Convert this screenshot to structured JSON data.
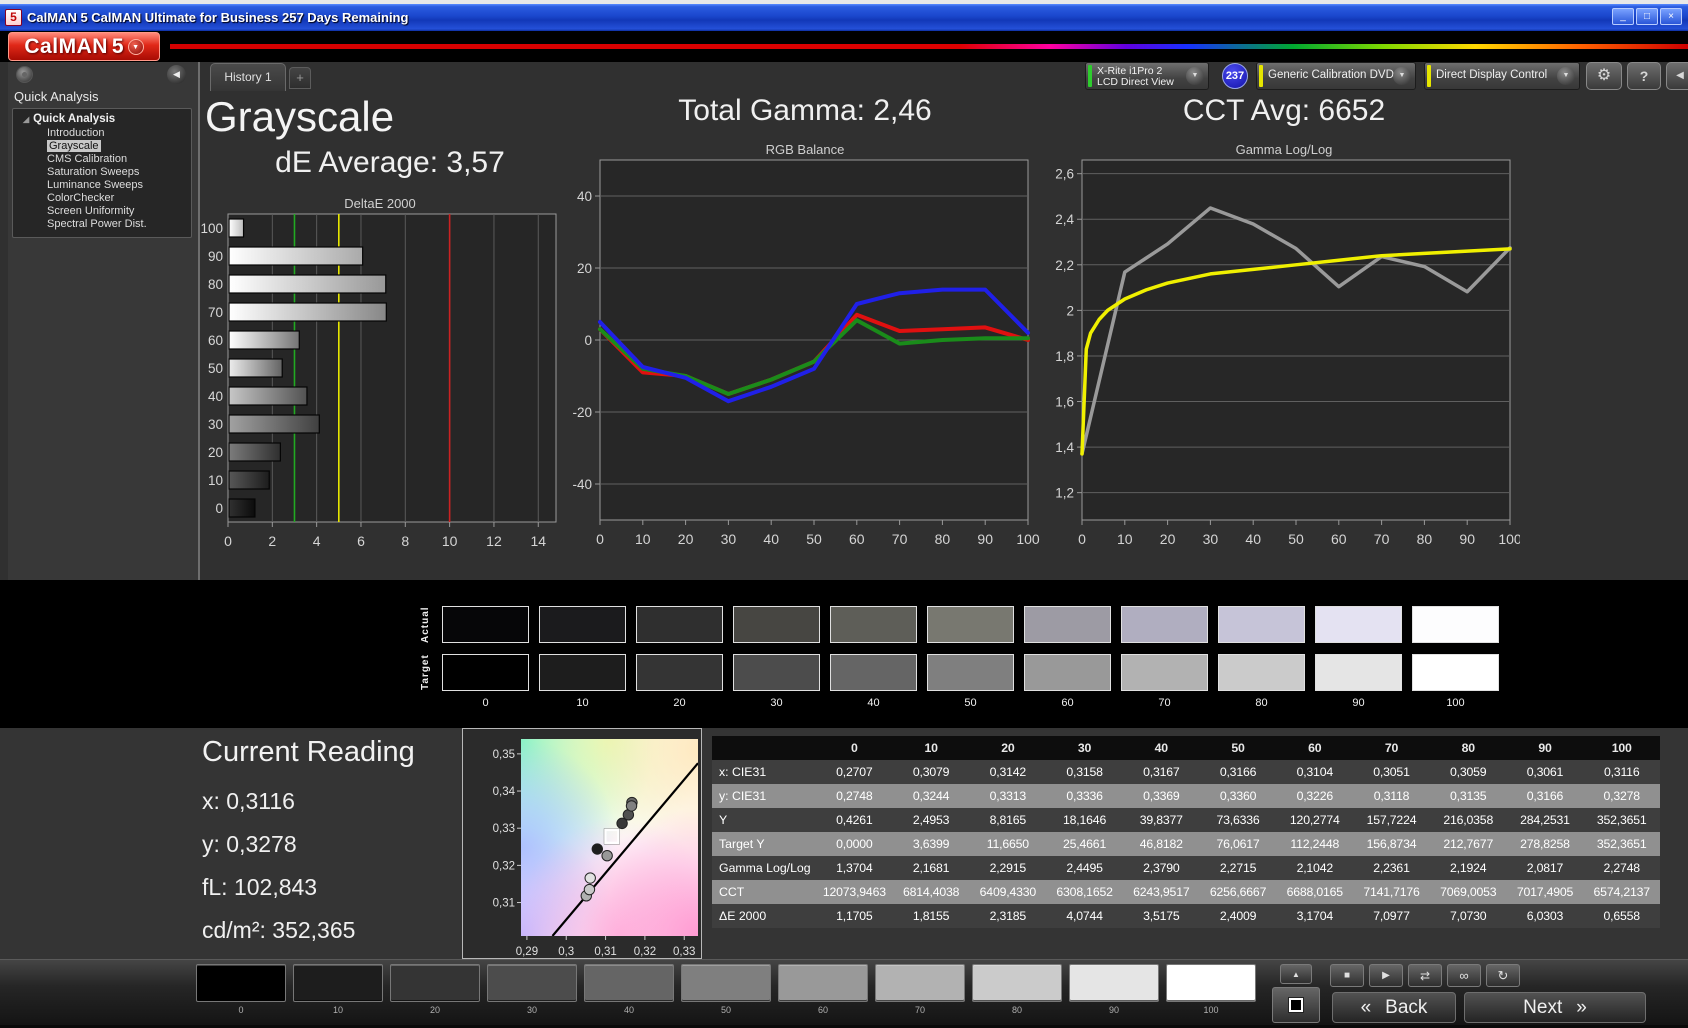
{
  "window": {
    "title": "CalMAN 5 CalMAN Ultimate for Business 257 Days Remaining",
    "icon": "5",
    "minimize": "_",
    "maximize": "□",
    "close": "×"
  },
  "logo": {
    "name": "CalMAN",
    "version": "5",
    "dropdown": "▼"
  },
  "tabbar": {
    "history_tab": "History 1",
    "add_tab": "+"
  },
  "toolbar": {
    "meter_line1": "X-Rite i1Pro 2",
    "meter_line2": "LCD Direct View",
    "meter_accent": "#2ecc2e",
    "badge": "237",
    "badge_color": "#1a1acc",
    "source_label": "Generic Calibration DVD",
    "source_accent": "#e6e600",
    "display_label": "Direct Display Control",
    "display_accent": "#e6e600",
    "gear": "⚙",
    "help": "?",
    "collapse": "◀",
    "dropdown_arrow": "▼"
  },
  "sidebar": {
    "panel_title": "Quick Analysis",
    "root": "Quick Analysis",
    "expander": "◢",
    "items": [
      "Introduction",
      "Grayscale",
      "CMS Calibration",
      "Saturation Sweeps",
      "Luminance Sweeps",
      "ColorChecker",
      "Screen Uniformity",
      "Spectral Power Dist."
    ],
    "selected_index": 1,
    "collapse_arrow": "◀"
  },
  "headers": {
    "page_title": "Grayscale",
    "de_average": "dE Average: 3,57",
    "total_gamma": "Total Gamma: 2,46",
    "cct_avg": "CCT Avg: 6652"
  },
  "chart_data": [
    {
      "id": "deltae",
      "type": "bar",
      "orientation": "horizontal",
      "title": "DeltaE 2000",
      "categories": [
        "100",
        "90",
        "80",
        "70",
        "60",
        "50",
        "40",
        "30",
        "20",
        "10",
        "0"
      ],
      "values": [
        0.6558,
        6.0303,
        7.073,
        7.0977,
        3.1704,
        2.4009,
        3.5175,
        4.0744,
        2.3185,
        1.8155,
        1.1705
      ],
      "xlim": [
        0,
        14.8
      ],
      "x_ticks": [
        0,
        2,
        4,
        6,
        8,
        10,
        12,
        14
      ],
      "reference_lines": [
        {
          "value": 3,
          "color": "#22aa22"
        },
        {
          "value": 5,
          "color": "#e8e800"
        },
        {
          "value": 10,
          "color": "#cc2222"
        }
      ],
      "grid": true
    },
    {
      "id": "rgb_balance",
      "type": "line",
      "title": "RGB Balance",
      "x": [
        0,
        10,
        20,
        30,
        40,
        50,
        60,
        70,
        80,
        90,
        100
      ],
      "ylim": [
        -50,
        50
      ],
      "y_ticks": [
        40,
        20,
        0,
        -20,
        -40
      ],
      "x_ticks": [
        0,
        10,
        20,
        30,
        40,
        50,
        60,
        70,
        80,
        90,
        100
      ],
      "grid": true,
      "series": [
        {
          "name": "red-balance",
          "color": "#e01010",
          "values": [
            3,
            -9,
            -10,
            -15,
            -11,
            -6,
            7,
            2.5,
            3,
            3.5,
            0
          ]
        },
        {
          "name": "green-balance",
          "color": "#1a8c1a",
          "values": [
            3,
            -8,
            -10,
            -15,
            -11,
            -6,
            5.5,
            -1,
            0,
            0.5,
            0.5
          ]
        },
        {
          "name": "blue-balance",
          "color": "#2020e8",
          "values": [
            5,
            -7.5,
            -10.5,
            -17,
            -13,
            -8,
            10,
            13,
            14,
            14,
            2
          ]
        }
      ]
    },
    {
      "id": "gamma",
      "type": "line",
      "title": "Gamma Log/Log",
      "ylim": [
        1.08,
        2.66
      ],
      "y_ticks": [
        1.2,
        1.4,
        1.6,
        1.8,
        2,
        2.2,
        2.4,
        2.6
      ],
      "y_tick_labels": [
        "1,2",
        "1,4",
        "1,6",
        "1,8",
        "2",
        "2,2",
        "2,4",
        "2,6"
      ],
      "x_ticks": [
        0,
        10,
        20,
        30,
        40,
        50,
        60,
        70,
        80,
        90,
        100
      ],
      "grid": true,
      "series": [
        {
          "name": "measured-gamma",
          "color": "#9a9a9a",
          "x": [
            0,
            10,
            20,
            30,
            40,
            50,
            60,
            70,
            80,
            90,
            100
          ],
          "values": [
            1.3704,
            2.1681,
            2.2915,
            2.4495,
            2.379,
            2.2715,
            2.1042,
            2.2361,
            2.1924,
            2.0817,
            2.2748
          ]
        },
        {
          "name": "target-gamma",
          "color": "#f0f000",
          "x": [
            0,
            1,
            2,
            4,
            6,
            10,
            15,
            20,
            30,
            40,
            50,
            60,
            70,
            80,
            90,
            100
          ],
          "values": [
            1.37,
            1.83,
            1.9,
            1.96,
            2.0,
            2.05,
            2.09,
            2.12,
            2.16,
            2.18,
            2.2,
            2.22,
            2.24,
            2.25,
            2.26,
            2.27
          ]
        }
      ]
    },
    {
      "id": "cie",
      "type": "scatter",
      "title": "CIE xy chromaticity",
      "xlim": [
        0.2885,
        0.3335
      ],
      "ylim": [
        0.301,
        0.354
      ],
      "x_ticks": [
        0.29,
        0.3,
        0.31,
        0.32,
        0.33
      ],
      "x_tick_labels": [
        "0,29",
        "0,3",
        "0,31",
        "0,32",
        "0,33"
      ],
      "y_ticks": [
        0.35,
        0.34,
        0.33,
        0.32,
        0.31
      ],
      "y_tick_labels": [
        "0,35",
        "0,34",
        "0,33",
        "0,32",
        "0,31"
      ],
      "locus_line": [
        [
          0.2965,
          0.301
        ],
        [
          0.3335,
          0.3475
        ]
      ],
      "points": [
        {
          "level": 10,
          "x": 0.3079,
          "y": 0.3244,
          "color": "#1e1e1e"
        },
        {
          "level": 20,
          "x": 0.3142,
          "y": 0.3313,
          "color": "#383838"
        },
        {
          "level": 30,
          "x": 0.3158,
          "y": 0.3336,
          "color": "#505050"
        },
        {
          "level": 40,
          "x": 0.3167,
          "y": 0.3369,
          "color": "#686868"
        },
        {
          "level": 50,
          "x": 0.3166,
          "y": 0.336,
          "color": "#808080"
        },
        {
          "level": 60,
          "x": 0.3104,
          "y": 0.3226,
          "color": "#989898"
        },
        {
          "level": 70,
          "x": 0.3051,
          "y": 0.3118,
          "color": "#b0b0b0"
        },
        {
          "level": 80,
          "x": 0.3059,
          "y": 0.3135,
          "color": "#c8c8c8"
        },
        {
          "level": 90,
          "x": 0.3061,
          "y": 0.3166,
          "color": "#e2e2e2"
        },
        {
          "level": 100,
          "x": 0.3116,
          "y": 0.3278,
          "color": "#ffffff",
          "marker": "square"
        }
      ]
    }
  ],
  "grayscale_band": {
    "actual_label": "Actual",
    "target_label": "Target",
    "levels": [
      "0",
      "10",
      "20",
      "30",
      "40",
      "50",
      "60",
      "70",
      "80",
      "90",
      "100"
    ],
    "actual_colors": [
      "#060608",
      "#1b1b1d",
      "#2f2f2f",
      "#474642",
      "#5e5e58",
      "#787870",
      "#9d9ba4",
      "#b0aec0",
      "#c6c4d8",
      "#e4e2f2",
      "#fdfdfe"
    ],
    "target_colors": [
      "#000000",
      "#1d1d1d",
      "#343434",
      "#4c4c4c",
      "#656565",
      "#7f7f7f",
      "#999999",
      "#b2b2b2",
      "#cbcbcb",
      "#e5e5e5",
      "#ffffff"
    ]
  },
  "current_reading": {
    "title": "Current Reading",
    "lines": [
      "x: 0,3116",
      "y: 0,3278",
      "fL: 102,843",
      "cd/m²: 352,365"
    ]
  },
  "table": {
    "columns": [
      "0",
      "10",
      "20",
      "30",
      "40",
      "50",
      "60",
      "70",
      "80",
      "90",
      "100"
    ],
    "rows": [
      {
        "label": "x: CIE31",
        "values": [
          "0,2707",
          "0,3079",
          "0,3142",
          "0,3158",
          "0,3167",
          "0,3166",
          "0,3104",
          "0,3051",
          "0,3059",
          "0,3061",
          "0,3116"
        ]
      },
      {
        "label": "y: CIE31",
        "values": [
          "0,2748",
          "0,3244",
          "0,3313",
          "0,3336",
          "0,3369",
          "0,3360",
          "0,3226",
          "0,3118",
          "0,3135",
          "0,3166",
          "0,3278"
        ]
      },
      {
        "label": "Y",
        "values": [
          "0,4261",
          "2,4953",
          "8,8165",
          "18,1646",
          "39,8377",
          "73,6336",
          "120,2774",
          "157,7224",
          "216,0358",
          "284,2531",
          "352,3651"
        ]
      },
      {
        "label": "Target Y",
        "values": [
          "0,0000",
          "3,6399",
          "11,6650",
          "25,4661",
          "46,8182",
          "76,0617",
          "112,2448",
          "156,8734",
          "212,7677",
          "278,8258",
          "352,3651"
        ]
      },
      {
        "label": "Gamma Log/Log",
        "values": [
          "1,3704",
          "2,1681",
          "2,2915",
          "2,4495",
          "2,3790",
          "2,2715",
          "2,1042",
          "2,2361",
          "2,1924",
          "2,0817",
          "2,2748"
        ]
      },
      {
        "label": "CCT",
        "values": [
          "12073,9463",
          "6814,4038",
          "6409,4330",
          "6308,1652",
          "6243,9517",
          "6256,6667",
          "6688,0165",
          "7141,7176",
          "7069,0053",
          "7017,4905",
          "6574,2137"
        ]
      },
      {
        "label": "ΔE 2000",
        "values": [
          "1,1705",
          "1,8155",
          "2,3185",
          "4,0744",
          "3,5175",
          "2,4009",
          "3,1704",
          "7,0977",
          "7,0730",
          "6,0303",
          "0,6558"
        ]
      }
    ]
  },
  "bottom_bar": {
    "levels": [
      "0",
      "10",
      "20",
      "30",
      "40",
      "50",
      "60",
      "70",
      "80",
      "90",
      "100"
    ],
    "colors": [
      "#000000",
      "#1d1d1d",
      "#343434",
      "#4c4c4c",
      "#656565",
      "#7f7f7f",
      "#999999",
      "#b2b2b2",
      "#cbcbcb",
      "#e5e5e5",
      "#ffffff"
    ],
    "controls": {
      "up": "▲",
      "stop": "■",
      "play": "▶",
      "step": "⇄",
      "loop": "∞",
      "refresh": "↻"
    },
    "back_arrow": "«",
    "back_label": "Back",
    "next_label": "Next",
    "next_arrow": "»"
  }
}
